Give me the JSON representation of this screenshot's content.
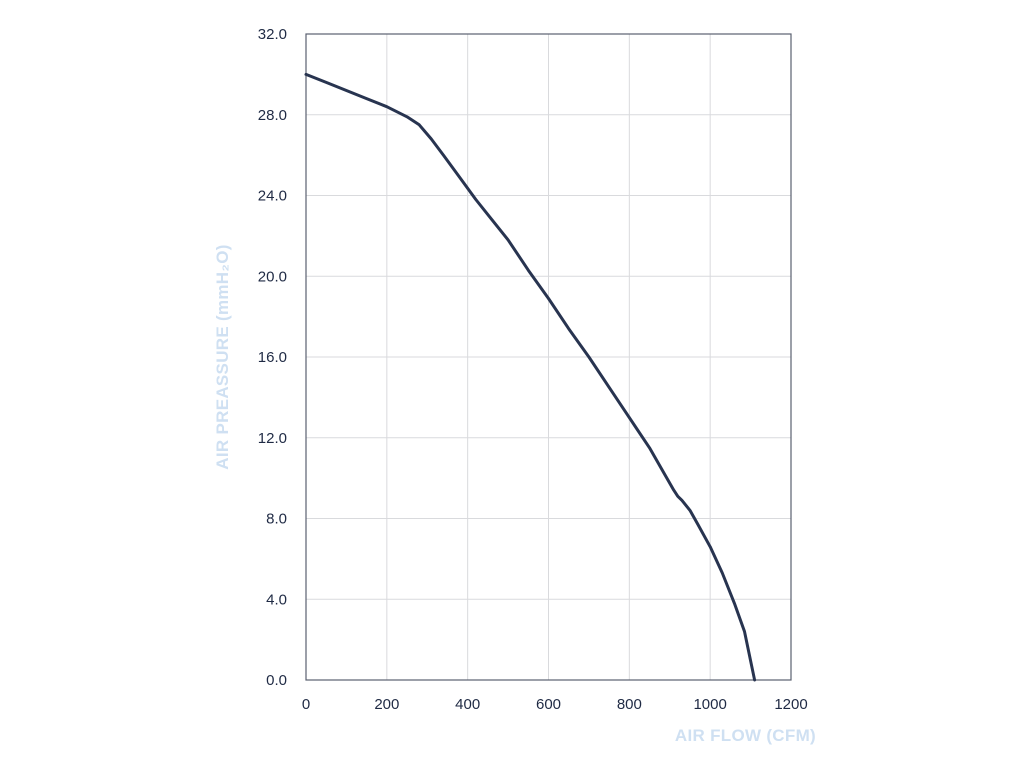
{
  "chart_data": {
    "type": "line",
    "title": "",
    "xlabel": "AIR FLOW (CFM)",
    "ylabel": "AIR PREASSURE (mmH₂O)",
    "xlim": [
      0,
      1200
    ],
    "ylim": [
      0,
      32
    ],
    "x_ticks": [
      "0",
      "200",
      "400",
      "600",
      "800",
      "1000",
      "1200"
    ],
    "y_ticks": [
      "0.0",
      "4.0",
      "8.0",
      "12.0",
      "16.0",
      "20.0",
      "24.0",
      "28.0",
      "32.0"
    ],
    "grid": true,
    "legend": "none",
    "series": [
      {
        "x": [
          0,
          50,
          100,
          150,
          200,
          250,
          280,
          310,
          340,
          380,
          420,
          460,
          500,
          550,
          600,
          650,
          700,
          750,
          800,
          850,
          890,
          910,
          920,
          930,
          950,
          970,
          1000,
          1030,
          1060,
          1085,
          1110
        ],
        "y": [
          30.0,
          29.6,
          29.2,
          28.8,
          28.4,
          27.9,
          27.5,
          26.8,
          26.0,
          24.9,
          23.8,
          22.8,
          21.8,
          20.3,
          18.9,
          17.4,
          16.0,
          14.5,
          13.0,
          11.5,
          10.1,
          9.4,
          9.1,
          8.9,
          8.4,
          7.7,
          6.6,
          5.3,
          3.8,
          2.4,
          0.0
        ],
        "color": "#283450"
      }
    ]
  }
}
